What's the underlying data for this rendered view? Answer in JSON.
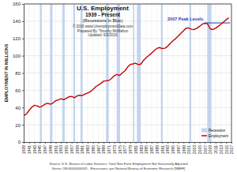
{
  "chart_data": {
    "type": "line",
    "title": "U.S. Employment",
    "subtitle": "1939 - Present",
    "title_note": "(Recessions in Blue)",
    "notes": [
      "© 2016 www.UnemploymentData.com",
      "Prepared By: Timothy McMahon",
      "Updated: 6/3/2016"
    ],
    "y_label": "EMPLOYMENT IN MILLIONS",
    "source": [
      "Source: U.S. Bureau of Labor Statistics: Total Non-Farm Employment Not Seasonally Adjusted",
      "Series CEU0000000001 - Recessions: per National Bureau of Economic Research [NBER]"
    ],
    "x": [
      1939,
      1940,
      1941,
      1942,
      1943,
      1944,
      1945,
      1946,
      1947,
      1948,
      1949,
      1950,
      1951,
      1952,
      1953,
      1954,
      1955,
      1956,
      1957,
      1958,
      1959,
      1960,
      1961,
      1962,
      1963,
      1964,
      1965,
      1966,
      1967,
      1968,
      1969,
      1970,
      1971,
      1972,
      1973,
      1974,
      1975,
      1976,
      1977,
      1978,
      1979,
      1980,
      1981,
      1982,
      1983,
      1984,
      1985,
      1986,
      1987,
      1988,
      1989,
      1990,
      1991,
      1992,
      1993,
      1994,
      1995,
      1996,
      1997,
      1998,
      1999,
      2000,
      2001,
      2002,
      2003,
      2004,
      2005,
      2006,
      2007,
      2008,
      2009,
      2010,
      2011,
      2012,
      2013,
      2014,
      2015,
      2016
    ],
    "series": [
      {
        "name": "Employment",
        "color": "#cc0000",
        "values": [
          30.6,
          32.4,
          36.6,
          40.2,
          42.6,
          42.0,
          40.4,
          41.7,
          43.9,
          44.9,
          43.8,
          45.2,
          48.0,
          48.8,
          50.2,
          49.0,
          50.7,
          52.4,
          52.9,
          51.4,
          53.3,
          54.2,
          53.8,
          55.6,
          56.7,
          58.3,
          60.8,
          64.0,
          65.9,
          68.0,
          70.5,
          71.0,
          71.3,
          73.8,
          76.9,
          78.3,
          77.1,
          80.0,
          82.5,
          86.8,
          89.9,
          90.5,
          91.3,
          89.7,
          90.3,
          94.7,
          97.9,
          100.4,
          103.0,
          106.0,
          108.4,
          109.5,
          108.3,
          108.7,
          110.8,
          114.3,
          117.3,
          119.7,
          122.8,
          125.9,
          129.0,
          132.0,
          132.1,
          130.6,
          130.3,
          131.8,
          134.0,
          136.5,
          137.6,
          137.0,
          131.2,
          130.3,
          131.8,
          134.1,
          136.4,
          138.9,
          141.8,
          143.9
        ]
      }
    ],
    "recessions": {
      "name": "Recession",
      "color": "#c3d4ec",
      "periods": [
        [
          1945.1,
          1945.8
        ],
        [
          1948.9,
          1949.8
        ],
        [
          1953.5,
          1954.4
        ],
        [
          1957.6,
          1958.3
        ],
        [
          1960.3,
          1961.1
        ],
        [
          1969.9,
          1970.9
        ],
        [
          1973.9,
          1975.2
        ],
        [
          1980.0,
          1980.5
        ],
        [
          1981.5,
          1982.9
        ],
        [
          1990.5,
          1991.2
        ],
        [
          2001.2,
          2001.9
        ],
        [
          2007.9,
          2009.5
        ]
      ]
    },
    "annotations": [
      {
        "text": "2007 Peak Levels",
        "x": [
          2007,
          2016.5
        ],
        "y": 138
      }
    ],
    "xlim": [
      1939,
      2017
    ],
    "xticks": [
      1939,
      1941,
      1943,
      1945,
      1947,
      1949,
      1951,
      1953,
      1955,
      1957,
      1959,
      1961,
      1963,
      1965,
      1967,
      1969,
      1971,
      1973,
      1975,
      1977,
      1979,
      1981,
      1983,
      1985,
      1987,
      1989,
      1991,
      1993,
      1995,
      1997,
      1999,
      2001,
      2003,
      2005,
      2007,
      2009,
      2011,
      2013,
      2015,
      2017
    ],
    "ylim": [
      0,
      160
    ],
    "yticks": [
      0,
      20,
      40,
      60,
      80,
      100,
      120,
      140,
      160
    ],
    "grid": true,
    "legend": "lower right"
  }
}
